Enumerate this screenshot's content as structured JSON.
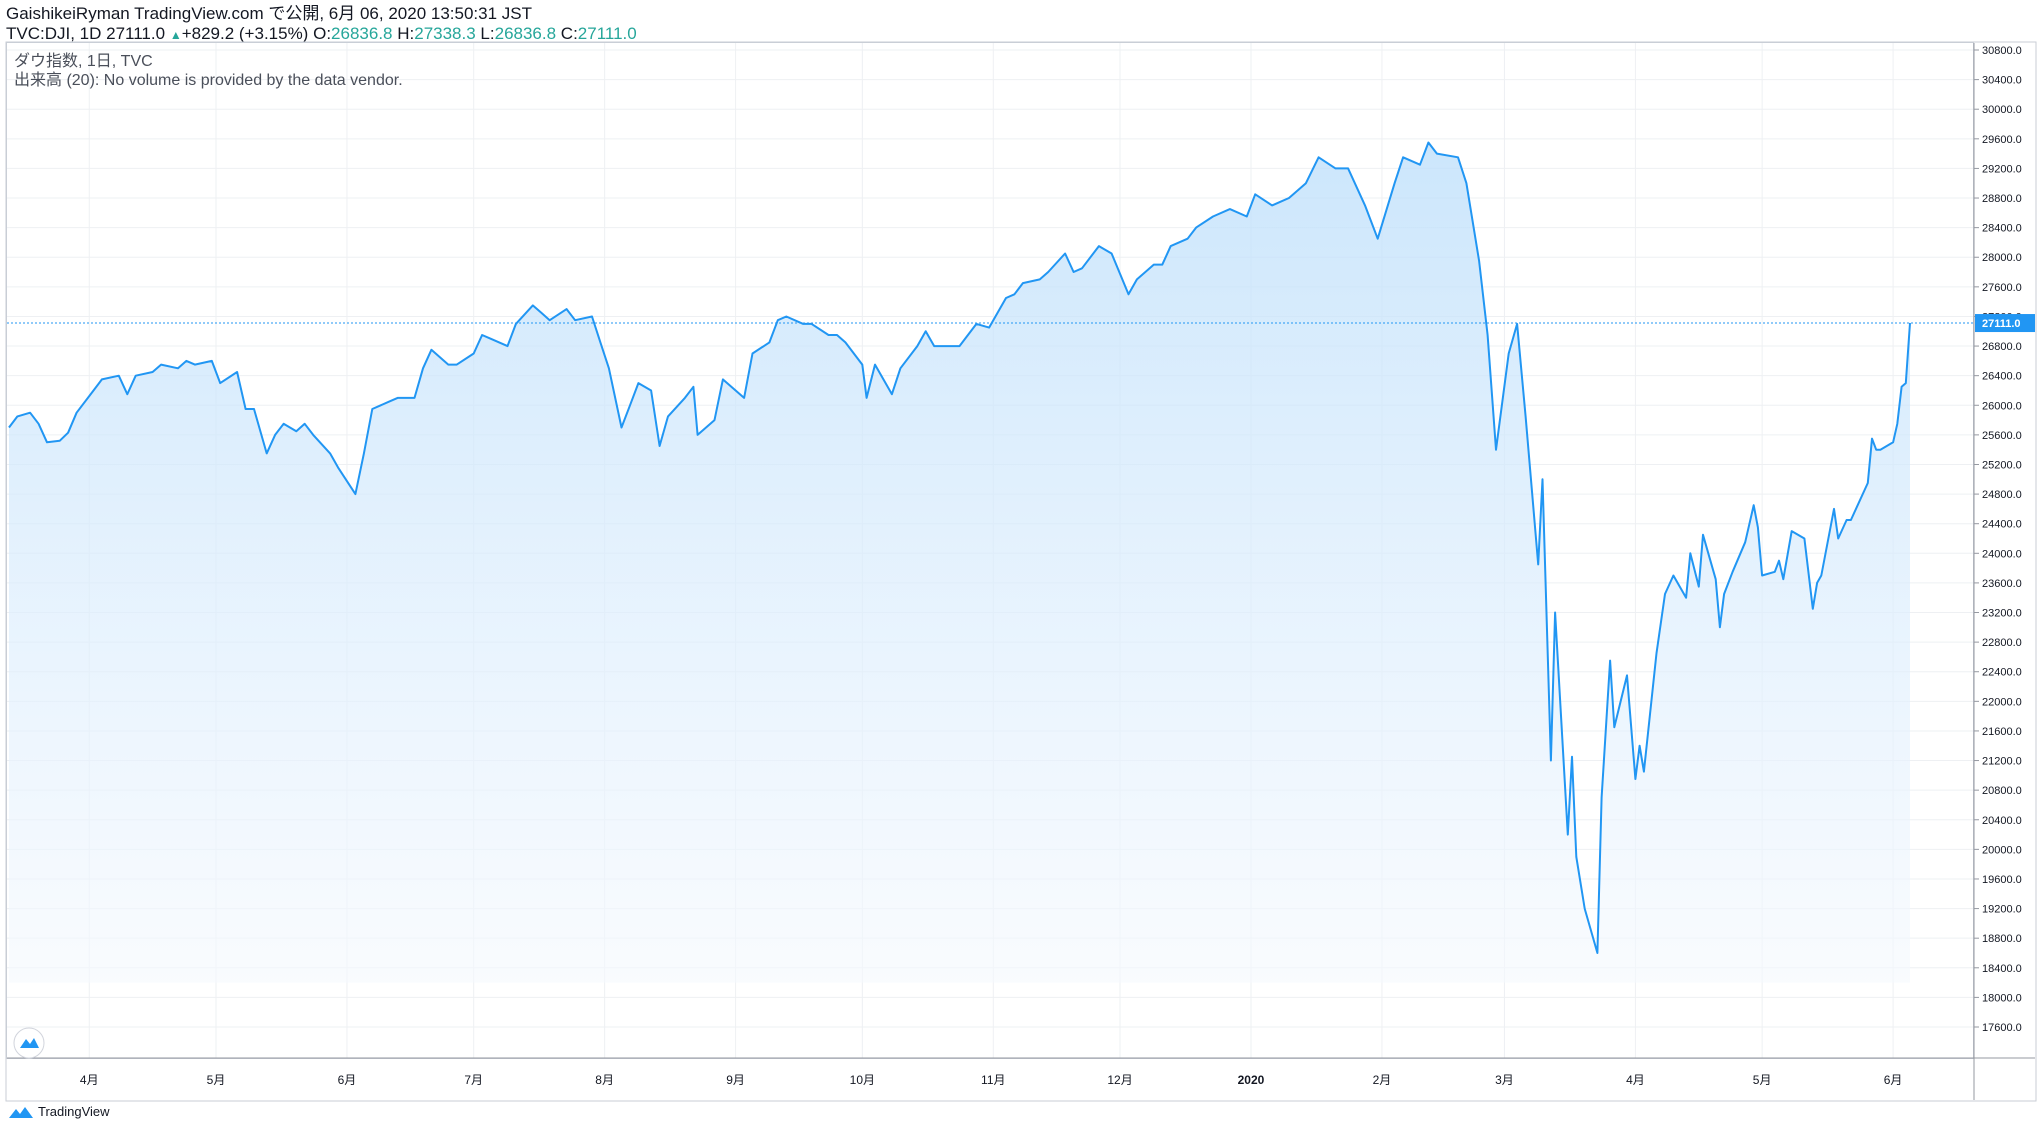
{
  "header": {
    "line1": "GaishikeiRyman TradingView.com で公開, 6月 06, 2020 13:50:31 JST",
    "symbol": "TVC:DJI, 1D",
    "last": "27111.0",
    "change_arrow": "▲",
    "change": "+829.2 (+3.15%)",
    "o_label": "O:",
    "o_value": "26836.8",
    "h_label": "H:",
    "h_value": "27338.3",
    "l_label": "L:",
    "l_value": "26836.8",
    "c_label": "C:",
    "c_value": "27111.0"
  },
  "legend": {
    "line1": "ダウ指数, 1日, TVC",
    "line2": "出来高 (20): No volume is provided by the data vendor."
  },
  "footer": {
    "brand": "TradingView"
  },
  "colors": {
    "line": "#2196f3",
    "fill_top": "#bbdefb",
    "fill_bottom": "#f5f9fe",
    "last_badge": "#2196f3",
    "grid": "#eef0f3"
  },
  "chart_data": {
    "type": "area",
    "title": "",
    "xlabel": "",
    "ylabel": "",
    "ylim": [
      17600,
      30800
    ],
    "y_ticks": [
      "17600.0",
      "18000.0",
      "18400.0",
      "18800.0",
      "19200.0",
      "19600.0",
      "20000.0",
      "20400.0",
      "20800.0",
      "21200.0",
      "21600.0",
      "22000.0",
      "22400.0",
      "22800.0",
      "23200.0",
      "23600.0",
      "24000.0",
      "24400.0",
      "24800.0",
      "25200.0",
      "25600.0",
      "26000.0",
      "26400.0",
      "26800.0",
      "27200.0",
      "27600.0",
      "28000.0",
      "28400.0",
      "28800.0",
      "29200.0",
      "29600.0",
      "30000.0",
      "30400.0",
      "30800.0"
    ],
    "x_ticks": [
      {
        "label": "4月",
        "x": "2019-04-01"
      },
      {
        "label": "5月",
        "x": "2019-05-01"
      },
      {
        "label": "6月",
        "x": "2019-06-01"
      },
      {
        "label": "7月",
        "x": "2019-07-01"
      },
      {
        "label": "8月",
        "x": "2019-08-01"
      },
      {
        "label": "9月",
        "x": "2019-09-01"
      },
      {
        "label": "10月",
        "x": "2019-10-01"
      },
      {
        "label": "11月",
        "x": "2019-11-01"
      },
      {
        "label": "12月",
        "x": "2019-12-01"
      },
      {
        "label": "2020",
        "x": "2020-01-01"
      },
      {
        "label": "2月",
        "x": "2020-02-01"
      },
      {
        "label": "3月",
        "x": "2020-03-01"
      },
      {
        "label": "4月",
        "x": "2020-04-01"
      },
      {
        "label": "5月",
        "x": "2020-05-01"
      },
      {
        "label": "6月",
        "x": "2020-06-01"
      }
    ],
    "last_value_label": "27111.0",
    "series": [
      {
        "points": [
          [
            "2019-03-13",
            25700
          ],
          [
            "2019-03-15",
            25850
          ],
          [
            "2019-03-18",
            25900
          ],
          [
            "2019-03-20",
            25750
          ],
          [
            "2019-03-22",
            25500
          ],
          [
            "2019-03-25",
            25520
          ],
          [
            "2019-03-27",
            25630
          ],
          [
            "2019-03-29",
            25900
          ],
          [
            "2019-04-02",
            26200
          ],
          [
            "2019-04-04",
            26350
          ],
          [
            "2019-04-08",
            26400
          ],
          [
            "2019-04-10",
            26150
          ],
          [
            "2019-04-12",
            26400
          ],
          [
            "2019-04-16",
            26450
          ],
          [
            "2019-04-18",
            26550
          ],
          [
            "2019-04-22",
            26500
          ],
          [
            "2019-04-24",
            26600
          ],
          [
            "2019-04-26",
            26550
          ],
          [
            "2019-04-30",
            26600
          ],
          [
            "2019-05-02",
            26300
          ],
          [
            "2019-05-06",
            26450
          ],
          [
            "2019-05-08",
            25950
          ],
          [
            "2019-05-10",
            25950
          ],
          [
            "2019-05-13",
            25350
          ],
          [
            "2019-05-15",
            25600
          ],
          [
            "2019-05-17",
            25750
          ],
          [
            "2019-05-20",
            25650
          ],
          [
            "2019-05-22",
            25750
          ],
          [
            "2019-05-24",
            25600
          ],
          [
            "2019-05-28",
            25350
          ],
          [
            "2019-05-30",
            25150
          ],
          [
            "2019-06-03",
            24800
          ],
          [
            "2019-06-05",
            25350
          ],
          [
            "2019-06-07",
            25950
          ],
          [
            "2019-06-11",
            26050
          ],
          [
            "2019-06-13",
            26100
          ],
          [
            "2019-06-17",
            26100
          ],
          [
            "2019-06-19",
            26500
          ],
          [
            "2019-06-21",
            26750
          ],
          [
            "2019-06-25",
            26550
          ],
          [
            "2019-06-27",
            26550
          ],
          [
            "2019-07-01",
            26700
          ],
          [
            "2019-07-03",
            26950
          ],
          [
            "2019-07-05",
            26900
          ],
          [
            "2019-07-09",
            26800
          ],
          [
            "2019-07-11",
            27100
          ],
          [
            "2019-07-15",
            27350
          ],
          [
            "2019-07-17",
            27250
          ],
          [
            "2019-07-19",
            27150
          ],
          [
            "2019-07-23",
            27300
          ],
          [
            "2019-07-25",
            27150
          ],
          [
            "2019-07-29",
            27200
          ],
          [
            "2019-07-31",
            26850
          ],
          [
            "2019-08-02",
            26500
          ],
          [
            "2019-08-05",
            25700
          ],
          [
            "2019-08-07",
            26000
          ],
          [
            "2019-08-09",
            26300
          ],
          [
            "2019-08-12",
            26200
          ],
          [
            "2019-08-14",
            25450
          ],
          [
            "2019-08-16",
            25850
          ],
          [
            "2019-08-20",
            26100
          ],
          [
            "2019-08-22",
            26250
          ],
          [
            "2019-08-23",
            25600
          ],
          [
            "2019-08-27",
            25800
          ],
          [
            "2019-08-29",
            26350
          ],
          [
            "2019-09-03",
            26100
          ],
          [
            "2019-09-05",
            26700
          ],
          [
            "2019-09-09",
            26850
          ],
          [
            "2019-09-11",
            27150
          ],
          [
            "2019-09-13",
            27200
          ],
          [
            "2019-09-17",
            27100
          ],
          [
            "2019-09-19",
            27100
          ],
          [
            "2019-09-23",
            26950
          ],
          [
            "2019-09-25",
            26950
          ],
          [
            "2019-09-27",
            26850
          ],
          [
            "2019-10-01",
            26550
          ],
          [
            "2019-10-02",
            26100
          ],
          [
            "2019-10-04",
            26550
          ],
          [
            "2019-10-08",
            26150
          ],
          [
            "2019-10-10",
            26500
          ],
          [
            "2019-10-14",
            26800
          ],
          [
            "2019-10-16",
            27000
          ],
          [
            "2019-10-18",
            26800
          ],
          [
            "2019-10-22",
            26800
          ],
          [
            "2019-10-24",
            26800
          ],
          [
            "2019-10-28",
            27100
          ],
          [
            "2019-10-31",
            27050
          ],
          [
            "2019-11-04",
            27450
          ],
          [
            "2019-11-06",
            27500
          ],
          [
            "2019-11-08",
            27650
          ],
          [
            "2019-11-12",
            27700
          ],
          [
            "2019-11-14",
            27800
          ],
          [
            "2019-11-18",
            28050
          ],
          [
            "2019-11-20",
            27800
          ],
          [
            "2019-11-22",
            27850
          ],
          [
            "2019-11-26",
            28150
          ],
          [
            "2019-11-29",
            28050
          ],
          [
            "2019-12-03",
            27500
          ],
          [
            "2019-12-05",
            27700
          ],
          [
            "2019-12-09",
            27900
          ],
          [
            "2019-12-11",
            27900
          ],
          [
            "2019-12-13",
            28150
          ],
          [
            "2019-12-17",
            28250
          ],
          [
            "2019-12-19",
            28400
          ],
          [
            "2019-12-23",
            28550
          ],
          [
            "2019-12-27",
            28650
          ],
          [
            "2019-12-31",
            28550
          ],
          [
            "2020-01-02",
            28850
          ],
          [
            "2020-01-06",
            28700
          ],
          [
            "2020-01-08",
            28750
          ],
          [
            "2020-01-10",
            28800
          ],
          [
            "2020-01-14",
            29000
          ],
          [
            "2020-01-17",
            29350
          ],
          [
            "2020-01-21",
            29200
          ],
          [
            "2020-01-24",
            29200
          ],
          [
            "2020-01-28",
            28700
          ],
          [
            "2020-01-31",
            28250
          ],
          [
            "2020-02-04",
            29000
          ],
          [
            "2020-02-06",
            29350
          ],
          [
            "2020-02-10",
            29250
          ],
          [
            "2020-02-12",
            29550
          ],
          [
            "2020-02-14",
            29400
          ],
          [
            "2020-02-19",
            29350
          ],
          [
            "2020-02-21",
            29000
          ],
          [
            "2020-02-24",
            27950
          ],
          [
            "2020-02-26",
            26950
          ],
          [
            "2020-02-28",
            25400
          ],
          [
            "2020-03-02",
            26700
          ],
          [
            "2020-03-04",
            27100
          ],
          [
            "2020-03-06",
            25850
          ],
          [
            "2020-03-09",
            23850
          ],
          [
            "2020-03-10",
            25000
          ],
          [
            "2020-03-12",
            21200
          ],
          [
            "2020-03-13",
            23200
          ],
          [
            "2020-03-16",
            20200
          ],
          [
            "2020-03-17",
            21250
          ],
          [
            "2020-03-18",
            19900
          ],
          [
            "2020-03-20",
            19200
          ],
          [
            "2020-03-23",
            18600
          ],
          [
            "2020-03-24",
            20700
          ],
          [
            "2020-03-26",
            22550
          ],
          [
            "2020-03-27",
            21650
          ],
          [
            "2020-03-30",
            22350
          ],
          [
            "2020-04-01",
            20950
          ],
          [
            "2020-04-02",
            21400
          ],
          [
            "2020-04-03",
            21050
          ],
          [
            "2020-04-06",
            22650
          ],
          [
            "2020-04-08",
            23450
          ],
          [
            "2020-04-10",
            23700
          ],
          [
            "2020-04-13",
            23400
          ],
          [
            "2020-04-14",
            24000
          ],
          [
            "2020-04-16",
            23550
          ],
          [
            "2020-04-17",
            24250
          ],
          [
            "2020-04-20",
            23650
          ],
          [
            "2020-04-21",
            23000
          ],
          [
            "2020-04-22",
            23450
          ],
          [
            "2020-04-24",
            23750
          ],
          [
            "2020-04-27",
            24150
          ],
          [
            "2020-04-29",
            24650
          ],
          [
            "2020-04-30",
            24350
          ],
          [
            "2020-05-01",
            23700
          ],
          [
            "2020-05-04",
            23750
          ],
          [
            "2020-05-05",
            23900
          ],
          [
            "2020-05-06",
            23650
          ],
          [
            "2020-05-08",
            24300
          ],
          [
            "2020-05-11",
            24200
          ],
          [
            "2020-05-13",
            23250
          ],
          [
            "2020-05-14",
            23600
          ],
          [
            "2020-05-15",
            23700
          ],
          [
            "2020-05-18",
            24600
          ],
          [
            "2020-05-19",
            24200
          ],
          [
            "2020-05-21",
            24450
          ],
          [
            "2020-05-22",
            24450
          ],
          [
            "2020-05-26",
            24950
          ],
          [
            "2020-05-27",
            25550
          ],
          [
            "2020-05-28",
            25400
          ],
          [
            "2020-05-29",
            25400
          ],
          [
            "2020-06-01",
            25500
          ],
          [
            "2020-06-02",
            25750
          ],
          [
            "2020-06-03",
            26250
          ],
          [
            "2020-06-04",
            26300
          ],
          [
            "2020-06-05",
            27111
          ]
        ]
      }
    ]
  }
}
